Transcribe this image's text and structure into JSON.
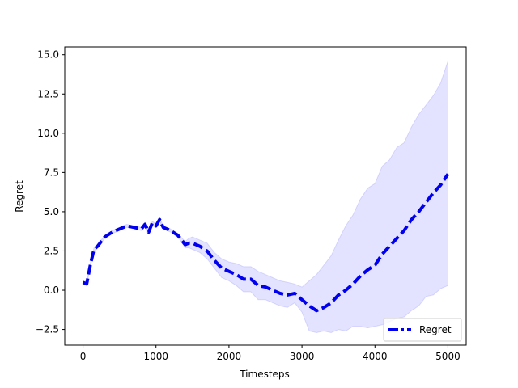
{
  "chart_data": {
    "type": "line",
    "title": "",
    "xlabel": "Timesteps",
    "ylabel": "Regret",
    "xlim": [
      -250,
      5250
    ],
    "ylim": [
      -3.5,
      15.5
    ],
    "xticks": [
      0,
      1000,
      2000,
      3000,
      4000,
      5000
    ],
    "xtick_labels": [
      "0",
      "1000",
      "2000",
      "3000",
      "4000",
      "5000"
    ],
    "yticks": [
      -2.5,
      0.0,
      2.5,
      5.0,
      7.5,
      10.0,
      12.5,
      15.0
    ],
    "ytick_labels": [
      "−2.5",
      "0.0",
      "2.5",
      "5.0",
      "7.5",
      "10.0",
      "12.5",
      "15.0"
    ],
    "grid": false,
    "legend_position": "lower-right",
    "colors": {
      "line": "#0000ee",
      "band": "#0000ff",
      "band_opacity": 0.11
    },
    "series": [
      {
        "name": "Regret",
        "style": "dashed",
        "x": [
          0,
          50,
          100,
          150,
          200,
          250,
          300,
          400,
          500,
          600,
          700,
          800,
          850,
          900,
          950,
          1000,
          1050,
          1100,
          1200,
          1300,
          1400,
          1450,
          1500,
          1600,
          1700,
          1800,
          1900,
          2000,
          2100,
          2200,
          2300,
          2400,
          2500,
          2600,
          2700,
          2800,
          2900,
          3000,
          3100,
          3200,
          3300,
          3400,
          3500,
          3600,
          3700,
          3800,
          3900,
          4000,
          4100,
          4200,
          4300,
          4400,
          4500,
          4600,
          4700,
          4800,
          4900,
          5000
        ],
        "y": [
          0.5,
          0.4,
          1.6,
          2.6,
          2.8,
          3.1,
          3.4,
          3.7,
          3.9,
          4.1,
          4.0,
          3.9,
          4.2,
          3.7,
          4.3,
          4.1,
          4.5,
          4.0,
          3.8,
          3.5,
          2.9,
          3.0,
          3.0,
          2.8,
          2.5,
          1.9,
          1.4,
          1.2,
          1.0,
          0.7,
          0.7,
          0.3,
          0.2,
          0.0,
          -0.2,
          -0.3,
          -0.2,
          -0.6,
          -1.0,
          -1.3,
          -1.1,
          -0.8,
          -0.3,
          0.0,
          0.4,
          0.9,
          1.3,
          1.6,
          2.3,
          2.8,
          3.3,
          3.8,
          4.5,
          5.0,
          5.6,
          6.2,
          6.7,
          7.4
        ],
        "band_upper": [
          0.6,
          0.5,
          1.7,
          2.7,
          2.9,
          3.2,
          3.5,
          3.8,
          4.0,
          4.2,
          4.1,
          4.0,
          4.3,
          3.8,
          4.4,
          4.2,
          4.6,
          4.1,
          3.9,
          3.6,
          3.1,
          3.3,
          3.4,
          3.2,
          3.0,
          2.4,
          2.0,
          1.8,
          1.7,
          1.5,
          1.5,
          1.2,
          1.0,
          0.8,
          0.6,
          0.5,
          0.4,
          0.2,
          0.6,
          1.0,
          1.6,
          2.2,
          3.2,
          4.1,
          4.8,
          5.8,
          6.5,
          6.8,
          7.9,
          8.3,
          9.1,
          9.4,
          10.4,
          11.2,
          11.8,
          12.4,
          13.2,
          14.6
        ],
        "band_lower": [
          0.4,
          0.3,
          1.5,
          2.5,
          2.7,
          3.0,
          3.3,
          3.6,
          3.8,
          4.0,
          3.9,
          3.8,
          4.1,
          3.6,
          4.2,
          4.0,
          4.4,
          3.9,
          3.7,
          3.4,
          2.7,
          2.7,
          2.6,
          2.4,
          2.0,
          1.4,
          0.8,
          0.6,
          0.3,
          -0.1,
          -0.1,
          -0.6,
          -0.6,
          -0.8,
          -1.0,
          -1.1,
          -0.8,
          -1.4,
          -2.6,
          -2.7,
          -2.6,
          -2.7,
          -2.5,
          -2.6,
          -2.3,
          -2.3,
          -2.4,
          -2.3,
          -2.2,
          -2.0,
          -1.8,
          -1.7,
          -1.3,
          -1.0,
          -0.4,
          -0.3,
          0.1,
          0.3
        ]
      }
    ]
  }
}
